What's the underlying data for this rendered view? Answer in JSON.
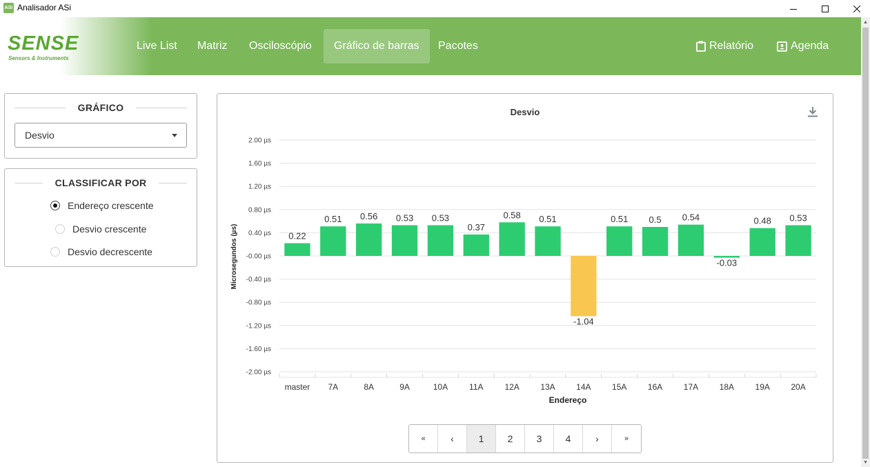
{
  "window": {
    "title": "Analisador ASi",
    "icon_text": "ASi"
  },
  "brand": {
    "name": "SENSE",
    "tagline": "Sensors & Instruments"
  },
  "nav": {
    "items": [
      {
        "label": "Live List"
      },
      {
        "label": "Matriz"
      },
      {
        "label": "Osciloscópio"
      },
      {
        "label": "Gráfico de barras",
        "active": true
      },
      {
        "label": "Pacotes"
      }
    ],
    "report_label": "Relatório",
    "agenda_label": "Agenda"
  },
  "grafico_panel": {
    "title": "GRÁFICO",
    "selected": "Desvio"
  },
  "sort_panel": {
    "title": "CLASSIFICAR POR",
    "options": [
      {
        "label": "Endereço crescente",
        "checked": true
      },
      {
        "label": "Desvio crescente",
        "checked": false
      },
      {
        "label": "Desvio decrescente",
        "checked": false
      }
    ]
  },
  "chart_data": {
    "type": "bar",
    "title": "Desvio",
    "xlabel": "Endereço",
    "ylabel": "Microsegundos (µs)",
    "ylim": [
      -2.0,
      2.0
    ],
    "yticks": [
      "2.00 µs",
      "1.60 µs",
      "1.20 µs",
      "0.80 µs",
      "0.40 µs",
      "-0.00 µs",
      "-0.40 µs",
      "-0.80 µs",
      "-1.20 µs",
      "-1.60 µs",
      "-2.00 µs"
    ],
    "categories": [
      "master",
      "7A",
      "8A",
      "9A",
      "10A",
      "11A",
      "12A",
      "13A",
      "14A",
      "15A",
      "16A",
      "17A",
      "18A",
      "19A",
      "20A"
    ],
    "values": [
      0.22,
      0.51,
      0.56,
      0.53,
      0.53,
      0.37,
      0.58,
      0.51,
      -1.04,
      0.51,
      0.5,
      0.54,
      -0.03,
      0.48,
      0.53
    ],
    "labels": [
      "0.22",
      "0.51",
      "0.56",
      "0.53",
      "0.53",
      "0.37",
      "0.58",
      "0.51",
      "-1.04",
      "0.51",
      "0.5",
      "0.54",
      "-0.03",
      "0.48",
      "0.53"
    ],
    "colors": {
      "normal": "#2ecc71",
      "warning": "#f9c74f"
    },
    "grid": true
  },
  "pagination": {
    "first": "«",
    "prev": "‹",
    "next": "›",
    "last": "»",
    "pages": [
      "1",
      "2",
      "3",
      "4"
    ],
    "current": "1"
  }
}
